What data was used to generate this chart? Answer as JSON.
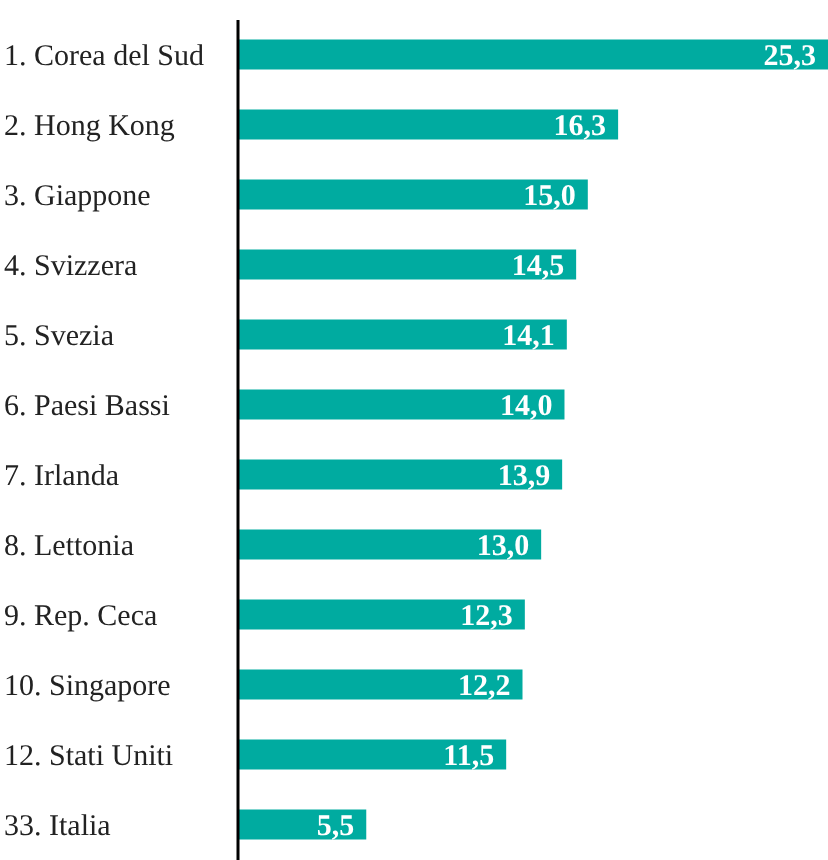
{
  "chart_data": {
    "type": "bar",
    "orientation": "horizontal",
    "categories": [
      "1. Corea del Sud",
      "2. Hong Kong",
      "3. Giappone",
      "4. Svizzera",
      "5. Svezia",
      "6. Paesi Bassi",
      "7. Irlanda",
      "8. Lettonia",
      "9. Rep. Ceca",
      "10. Singapore",
      "12. Stati Uniti",
      "33. Italia"
    ],
    "values": [
      25.3,
      16.3,
      15.0,
      14.5,
      14.1,
      14.0,
      13.9,
      13.0,
      12.3,
      12.2,
      11.5,
      5.5
    ],
    "value_labels": [
      "25,3",
      "16,3",
      "15,0",
      "14,5",
      "14,1",
      "14,0",
      "13,9",
      "13,0",
      "12,3",
      "12,2",
      "11,5",
      "5,5"
    ],
    "color": "#00aba0",
    "xlim": [
      0,
      25.3
    ]
  }
}
